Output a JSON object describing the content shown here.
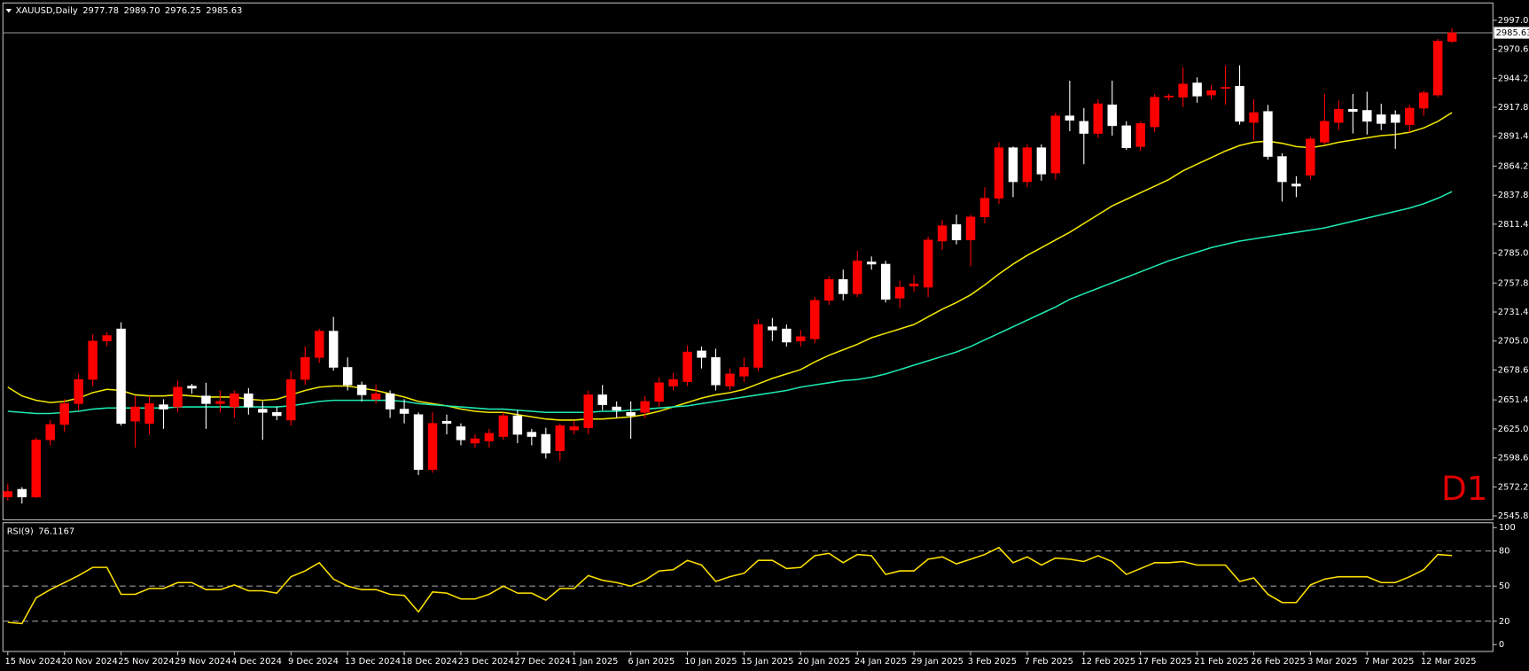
{
  "chart_data": [
    {
      "type": "candlestick",
      "symbol": "XAUUSD,Daily",
      "ohlc_labels": [
        "2977.78",
        "2989.70",
        "2976.25",
        "2985.63"
      ],
      "watermark": "D1",
      "up_color": "#ff0000",
      "down_color": "#ffffff",
      "ylim": [
        2544,
        3011
      ],
      "yticks": [
        {
          "value": 2997,
          "label": "2997.00"
        },
        {
          "value": 2970.6,
          "label": "2970.60"
        },
        {
          "value": 2944.2,
          "label": "2944.20"
        },
        {
          "value": 2917.8,
          "label": "2917.80"
        },
        {
          "value": 2891.4,
          "label": "2891.40"
        },
        {
          "value": 2864.2,
          "label": "2864.20"
        },
        {
          "value": 2837.8,
          "label": "2837.80"
        },
        {
          "value": 2811.4,
          "label": "2811.40"
        },
        {
          "value": 2785,
          "label": "2785.00"
        },
        {
          "value": 2757.8,
          "label": "2757.80"
        },
        {
          "value": 2731.4,
          "label": "2731.40"
        },
        {
          "value": 2705,
          "label": "2705.00"
        },
        {
          "value": 2678.6,
          "label": "2678.60"
        },
        {
          "value": 2651.4,
          "label": "2651.40"
        },
        {
          "value": 2625,
          "label": "2625.00"
        },
        {
          "value": 2598.6,
          "label": "2598.60"
        },
        {
          "value": 2572.2,
          "label": "2572.20"
        },
        {
          "value": 2545.8,
          "label": "2545.80"
        }
      ],
      "last_price": {
        "value": 2985.63,
        "label": "2985.63"
      },
      "categories": [
        "15 Nov 2024",
        null,
        null,
        null,
        "20 Nov 2024",
        null,
        null,
        null,
        "25 Nov 2024",
        null,
        null,
        null,
        "29 Nov 2024",
        null,
        null,
        null,
        "4 Dec 2024",
        null,
        null,
        null,
        "9 Dec 2024",
        null,
        null,
        null,
        "13 Dec 2024",
        null,
        null,
        null,
        "18 Dec 2024",
        null,
        null,
        null,
        "23 Dec 2024",
        null,
        null,
        null,
        "27 Dec 2024",
        null,
        null,
        null,
        "1 Jan 2025",
        null,
        null,
        null,
        "6 Jan 2025",
        null,
        null,
        null,
        "10 Jan 2025",
        null,
        null,
        null,
        "15 Jan 2025",
        null,
        null,
        null,
        "20 Jan 2025",
        null,
        null,
        null,
        "24 Jan 2025",
        null,
        null,
        null,
        "29 Jan 2025",
        null,
        null,
        null,
        "3 Feb 2025",
        null,
        null,
        null,
        "7 Feb 2025",
        null,
        null,
        null,
        "12 Feb 2025",
        null,
        null,
        null,
        "17 Feb 2025",
        null,
        null,
        null,
        "21 Feb 2025",
        null,
        null,
        null,
        "26 Feb 2025",
        null,
        null,
        null,
        "3 Mar 2025",
        null,
        null,
        null,
        "7 Mar 2025",
        null,
        null,
        null,
        "12 Mar 2025",
        null,
        null
      ],
      "open": [
        2563,
        2570,
        2563,
        2615,
        2629,
        2648,
        2670,
        2705,
        2716,
        2632,
        2630,
        2647,
        2645,
        2664,
        2655,
        2648,
        2645,
        2657,
        2643,
        2640,
        2633,
        2670,
        2690,
        2714,
        2681,
        2665,
        2652,
        2657,
        2643,
        2638,
        2588,
        2632,
        2627,
        2612,
        2614,
        2618,
        2637,
        2622,
        2620,
        2605,
        2624,
        2626,
        2656,
        2645,
        2640,
        2640,
        2650,
        2664,
        2668,
        2696,
        2690,
        2664,
        2673,
        2681,
        2718,
        2716,
        2705,
        2707,
        2742,
        2761,
        2748,
        2777,
        2775,
        2744,
        2755,
        2754,
        2796,
        2811,
        2797,
        2818,
        2835,
        2881,
        2850,
        2881,
        2858,
        2910,
        2905,
        2894,
        2920,
        2901,
        2882,
        2900,
        2927,
        2927,
        2940,
        2929,
        2935,
        2937,
        2904,
        2914,
        2873,
        2848,
        2856,
        2886,
        2904,
        2916,
        2915,
        2911,
        2911,
        2902,
        2917,
        2929,
        2977.78
      ],
      "high": [
        2575,
        2572,
        2617,
        2633,
        2652,
        2675,
        2711,
        2713,
        2722,
        2655,
        2655,
        2652,
        2669,
        2666,
        2667,
        2660,
        2660,
        2662,
        2650,
        2645,
        2678,
        2700,
        2716,
        2727,
        2690,
        2668,
        2665,
        2660,
        2652,
        2640,
        2640,
        2638,
        2630,
        2620,
        2625,
        2640,
        2642,
        2625,
        2626,
        2630,
        2632,
        2660,
        2665,
        2650,
        2650,
        2655,
        2672,
        2676,
        2701,
        2700,
        2698,
        2680,
        2690,
        2725,
        2726,
        2720,
        2715,
        2745,
        2764,
        2770,
        2787,
        2782,
        2778,
        2760,
        2765,
        2800,
        2815,
        2820,
        2820,
        2845,
        2886,
        2882,
        2884,
        2884,
        2913,
        2942,
        2917,
        2925,
        2942,
        2905,
        2905,
        2930,
        2930,
        2954,
        2945,
        2938,
        2956,
        2956,
        2925,
        2920,
        2876,
        2855,
        2891,
        2930,
        2924,
        2930,
        2932,
        2921,
        2915,
        2920,
        2933,
        2980,
        2989.7
      ],
      "low": [
        2560,
        2557,
        2562,
        2610,
        2622,
        2642,
        2664,
        2700,
        2628,
        2608,
        2620,
        2625,
        2640,
        2657,
        2625,
        2640,
        2635,
        2638,
        2615,
        2633,
        2628,
        2665,
        2685,
        2678,
        2660,
        2650,
        2648,
        2635,
        2630,
        2583,
        2585,
        2620,
        2610,
        2608,
        2608,
        2615,
        2612,
        2610,
        2598,
        2596,
        2620,
        2620,
        2642,
        2635,
        2616,
        2635,
        2645,
        2660,
        2664,
        2680,
        2660,
        2660,
        2668,
        2678,
        2705,
        2700,
        2700,
        2703,
        2738,
        2742,
        2745,
        2770,
        2740,
        2735,
        2750,
        2745,
        2788,
        2793,
        2773,
        2812,
        2830,
        2836,
        2845,
        2851,
        2852,
        2896,
        2866,
        2890,
        2892,
        2879,
        2878,
        2895,
        2924,
        2918,
        2922,
        2925,
        2920,
        2902,
        2888,
        2870,
        2832,
        2836,
        2852,
        2884,
        2897,
        2894,
        2893,
        2897,
        2880,
        2895,
        2910,
        2927,
        2976.25
      ],
      "close": [
        2568,
        2563,
        2615,
        2629,
        2648,
        2670,
        2705,
        2710,
        2630,
        2645,
        2648,
        2643,
        2663,
        2662,
        2648,
        2650,
        2657,
        2645,
        2640,
        2637,
        2670,
        2690,
        2714,
        2681,
        2665,
        2656,
        2657,
        2643,
        2639,
        2588,
        2630,
        2630,
        2615,
        2616,
        2621,
        2637,
        2620,
        2618,
        2603,
        2628,
        2627,
        2656,
        2647,
        2642,
        2637,
        2650,
        2667,
        2670,
        2695,
        2690,
        2665,
        2675,
        2681,
        2720,
        2715,
        2704,
        2709,
        2742,
        2761,
        2748,
        2778,
        2775,
        2743,
        2754,
        2757,
        2797,
        2810,
        2797,
        2818,
        2835,
        2881,
        2850,
        2881,
        2857,
        2910,
        2906,
        2894,
        2921,
        2901,
        2881,
        2903,
        2927,
        2928,
        2939,
        2928,
        2933,
        2936,
        2905,
        2913,
        2873,
        2850,
        2846,
        2889,
        2905,
        2916,
        2914,
        2905,
        2903,
        2904,
        2917,
        2931,
        2978,
        2985.63
      ],
      "overlays": [
        {
          "color": "#f2e600",
          "values": [
            2663,
            2655,
            2651,
            2649,
            2650,
            2653,
            2658,
            2661,
            2660,
            2656,
            2655,
            2655,
            2656,
            2655,
            2654,
            2654,
            2654,
            2652,
            2651,
            2652,
            2656,
            2660,
            2663,
            2664,
            2664,
            2662,
            2660,
            2657,
            2654,
            2650,
            2648,
            2646,
            2643,
            2641,
            2640,
            2640,
            2638,
            2636,
            2634,
            2633,
            2633,
            2634,
            2634,
            2635,
            2636,
            2638,
            2641,
            2645,
            2649,
            2653,
            2656,
            2658,
            2661,
            2666,
            2671,
            2675,
            2679,
            2686,
            2692,
            2697,
            2702,
            2708,
            2712,
            2716,
            2720,
            2727,
            2734,
            2740,
            2747,
            2756,
            2766,
            2775,
            2783,
            2790,
            2797,
            2804,
            2812,
            2820,
            2828,
            2834,
            2840,
            2846,
            2852,
            2860,
            2866,
            2872,
            2878,
            2883,
            2886,
            2887,
            2885,
            2882,
            2881,
            2883,
            2886,
            2888,
            2890,
            2892,
            2893,
            2895,
            2899,
            2905,
            2913
          ]
        },
        {
          "color": "#1de9b0",
          "values": [
            2641,
            2640,
            2639,
            2639,
            2640,
            2641,
            2643,
            2644,
            2644,
            2644,
            2644,
            2644,
            2645,
            2645,
            2645,
            2645,
            2645,
            2645,
            2645,
            2645,
            2646,
            2648,
            2650,
            2651,
            2651,
            2651,
            2651,
            2651,
            2650,
            2648,
            2647,
            2646,
            2645,
            2644,
            2643,
            2643,
            2642,
            2641,
            2640,
            2640,
            2640,
            2640,
            2641,
            2641,
            2642,
            2643,
            2644,
            2645,
            2646,
            2648,
            2650,
            2652,
            2654,
            2656,
            2658,
            2660,
            2663,
            2665,
            2667,
            2669,
            2670,
            2672,
            2675,
            2679,
            2683,
            2687,
            2691,
            2695,
            2700,
            2706,
            2712,
            2718,
            2724,
            2730,
            2736,
            2743,
            2748,
            2753,
            2758,
            2763,
            2768,
            2773,
            2778,
            2782,
            2786,
            2790,
            2793,
            2796,
            2798,
            2800,
            2802,
            2804,
            2806,
            2808,
            2811,
            2814,
            2817,
            2820,
            2823,
            2826,
            2830,
            2835,
            2841
          ]
        }
      ]
    },
    {
      "type": "line",
      "title": "RSI(9)",
      "color": "#ffe100",
      "ylim": [
        0,
        100
      ],
      "yticks": [
        0,
        20,
        50,
        80,
        100
      ],
      "levels": [
        20,
        50,
        80
      ],
      "values": [
        19,
        18,
        40,
        47,
        53,
        59,
        66,
        66,
        43,
        43,
        48,
        48,
        53,
        53,
        47,
        47,
        51,
        46,
        46,
        44,
        58,
        63,
        70,
        56,
        50,
        47,
        47,
        43,
        42,
        28,
        45,
        44,
        39,
        39,
        43,
        50,
        44,
        44,
        38,
        48,
        48,
        59,
        55,
        53,
        50,
        55,
        63,
        64,
        72,
        68,
        54,
        58,
        61,
        72,
        72,
        65,
        66,
        76,
        78,
        70,
        77,
        76,
        60,
        63,
        63,
        73,
        75,
        69,
        73,
        77,
        83,
        70,
        75,
        68,
        74,
        73,
        71,
        76,
        71,
        60,
        65,
        70,
        70,
        71,
        68,
        68,
        68,
        54,
        57,
        43,
        36,
        36,
        51,
        56,
        58,
        58,
        58,
        53,
        53,
        58,
        64,
        77,
        76.1167
      ]
    }
  ]
}
